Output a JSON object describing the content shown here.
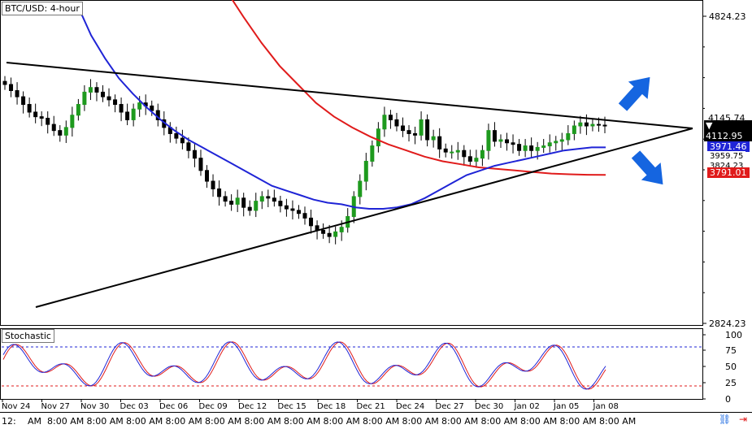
{
  "window": {
    "title": "BTC/USD: 4-hour"
  },
  "price_panel": {
    "y_ticks": [
      "4824.23",
      "2824.23"
    ],
    "badges": {
      "last_price": {
        "label": "4145.74",
        "value": "4112.95",
        "bg": "#000000",
        "fg": "#ffffff"
      },
      "ma_blue": {
        "value": "3971.46",
        "bg": "#1f24d6",
        "fg": "#ffffff",
        "under": "3959.75"
      },
      "ma_red": {
        "value": "3791.01",
        "bg": "#e01b1b",
        "fg": "#ffffff",
        "over": "3824.23"
      }
    }
  },
  "stochastic": {
    "title": "Stochastic",
    "y_ticks": [
      "100",
      "75",
      "50",
      "25",
      "0"
    ],
    "levels": [
      80,
      20
    ]
  },
  "x_dates": [
    "Nov 24",
    "Nov 27",
    "Nov 30",
    "Dec 03",
    "Dec 06",
    "Dec 09",
    "Dec 12",
    "Dec 15",
    "Dec 18",
    "Dec 21",
    "Dec 24",
    "Dec 27",
    "Dec 30",
    "Jan 02",
    "Jan 05",
    "Jan 08"
  ],
  "x_times": [
    "12:",
    "AM",
    "8:00 AM",
    "8:00 AM",
    "8:00 AM",
    "8:00 AM",
    "8:00 AM",
    "8:00 AM",
    "8:00 AM",
    "8:00 AM",
    "8:00 AM",
    "8:00 AM",
    "8:00 AM",
    "8:00 AM",
    "8:00 AM",
    "8:00 AM",
    "8:00 AM"
  ],
  "colors": {
    "up": "#1e9a1e",
    "down": "#000000",
    "ma_blue": "#1f24d6",
    "ma_red": "#e01b1b",
    "trend": "#000000",
    "arrow": "#1565e0",
    "stoch_k": "#1f24d6",
    "stoch_d": "#e01b1b"
  },
  "icons": {
    "link": "link-icon",
    "autoscroll": "autoscroll-icon"
  },
  "chart_data": {
    "type": "candlestick",
    "ylim": [
      2824.23,
      4824.23
    ],
    "annotations": [
      "upward breakout arrow",
      "downward breakout arrow",
      "symmetrical triangle trendlines"
    ],
    "closes": [
      4380,
      4340,
      4300,
      4250,
      4200,
      4170,
      4160,
      4120,
      4080,
      4050,
      4100,
      4180,
      4250,
      4330,
      4360,
      4330,
      4300,
      4280,
      4250,
      4200,
      4150,
      4220,
      4260,
      4240,
      4210,
      4150,
      4100,
      4060,
      4030,
      4000,
      3950,
      3900,
      3820,
      3750,
      3700,
      3650,
      3620,
      3600,
      3640,
      3580,
      3560,
      3620,
      3650,
      3640,
      3620,
      3590,
      3570,
      3560,
      3540,
      3510,
      3460,
      3430,
      3410,
      3390,
      3420,
      3450,
      3520,
      3650,
      3750,
      3880,
      3980,
      4090,
      4180,
      4150,
      4110,
      4080,
      4060,
      4050,
      4150,
      4020,
      4040,
      3960,
      3940,
      3940,
      3950,
      3910,
      3880,
      3900,
      3950,
      4080,
      4010,
      4020,
      4000,
      3990,
      3950,
      3980,
      3950,
      3970,
      3980,
      4000,
      4010,
      4020,
      4060,
      4110,
      4130,
      4110,
      4120,
      4115,
      4113
    ],
    "ma_blue": [
      4900,
      4700,
      4550,
      4420,
      4320,
      4230,
      4150,
      4080,
      4020,
      3970,
      3920,
      3870,
      3820,
      3770,
      3720,
      3690,
      3660,
      3630,
      3610,
      3600,
      3580,
      3570,
      3570,
      3580,
      3600,
      3640,
      3690,
      3740,
      3790,
      3820,
      3850,
      3870,
      3890,
      3910,
      3930,
      3950,
      3960,
      3970,
      3970
    ],
    "ma_red": [
      5200,
      5000,
      4820,
      4650,
      4500,
      4380,
      4260,
      4170,
      4100,
      4040,
      3990,
      3950,
      3910,
      3880,
      3860,
      3840,
      3830,
      3820,
      3810,
      3800,
      3795,
      3792,
      3791
    ]
  }
}
